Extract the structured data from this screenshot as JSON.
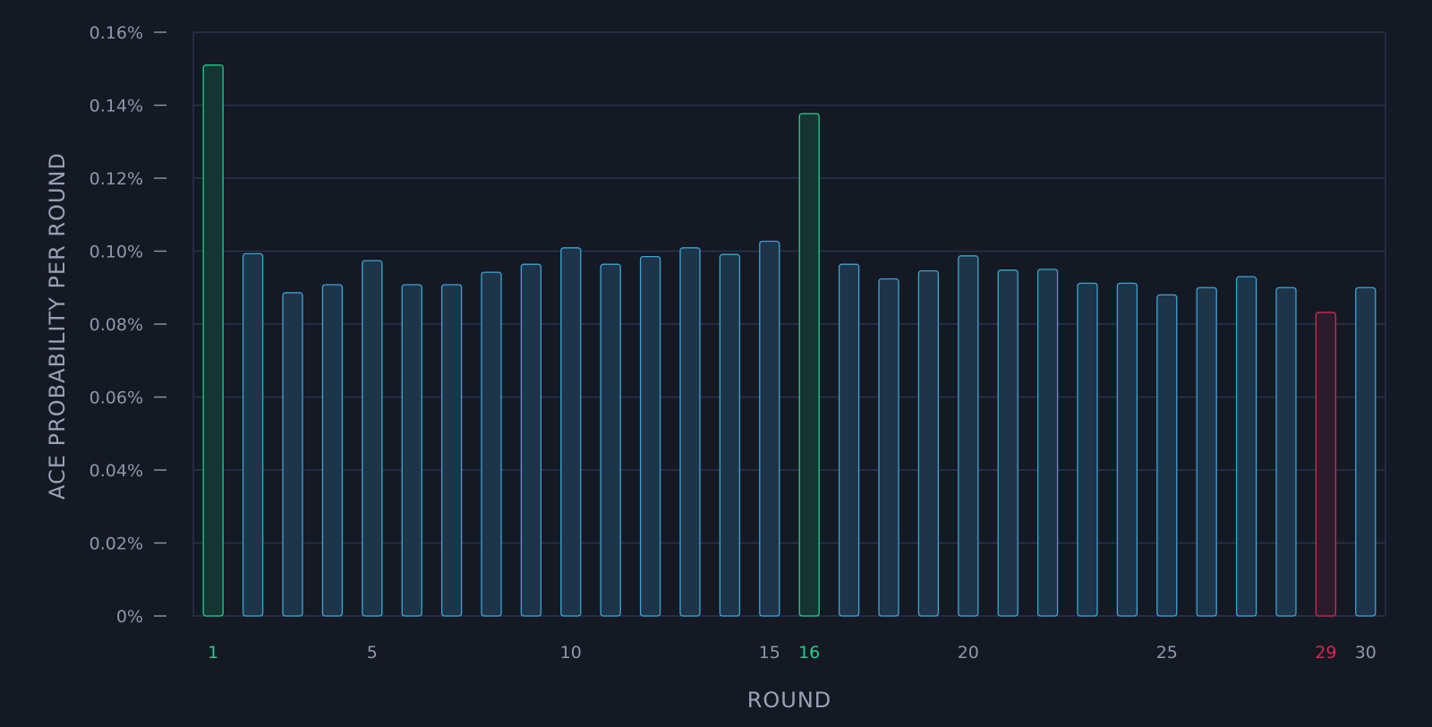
{
  "colors": {
    "background": "#151923",
    "grid": "#2c3350",
    "tick_text": "#8f97ab",
    "axis_label": "#9aa1b4",
    "bar_default_stroke": "#3aa6d6",
    "bar_default_fill": "#1e3448",
    "bar_high_stroke": "#1fd08f",
    "bar_high_fill": "#143532",
    "bar_low_stroke": "#d22a4f",
    "bar_low_fill": "#2a1c2b"
  },
  "chart_data": {
    "type": "bar",
    "title": "",
    "xlabel": "ROUND",
    "ylabel": "ACE PROBABILITY PER ROUND",
    "ylim": [
      0,
      0.16
    ],
    "y_ticks": [
      0,
      0.02,
      0.04,
      0.06,
      0.08,
      0.1,
      0.12,
      0.14,
      0.16
    ],
    "y_tick_labels": [
      "0%",
      "0.02%",
      "0.04%",
      "0.06%",
      "0.08%",
      "0.10%",
      "0.12%",
      "0.14%",
      "0.16%"
    ],
    "x_tick_labels_shown": [
      "1",
      "5",
      "10",
      "15",
      "16",
      "20",
      "25",
      "29",
      "30"
    ],
    "grid": true,
    "categories": [
      "1",
      "2",
      "3",
      "4",
      "5",
      "6",
      "7",
      "8",
      "9",
      "10",
      "11",
      "12",
      "13",
      "14",
      "15",
      "16",
      "17",
      "18",
      "19",
      "20",
      "21",
      "22",
      "23",
      "24",
      "25",
      "26",
      "27",
      "28",
      "29",
      "30"
    ],
    "values": [
      0.151,
      0.0993,
      0.0886,
      0.0908,
      0.0974,
      0.0908,
      0.0908,
      0.0942,
      0.0964,
      0.1009,
      0.0964,
      0.0985,
      0.1009,
      0.0991,
      0.1027,
      0.1377,
      0.0964,
      0.0924,
      0.0946,
      0.0987,
      0.0948,
      0.095,
      0.0912,
      0.0912,
      0.088,
      0.09,
      0.093,
      0.09,
      0.0832,
      0.09
    ],
    "highlight_high": [
      "1",
      "16"
    ],
    "highlight_low": [
      "29"
    ]
  }
}
